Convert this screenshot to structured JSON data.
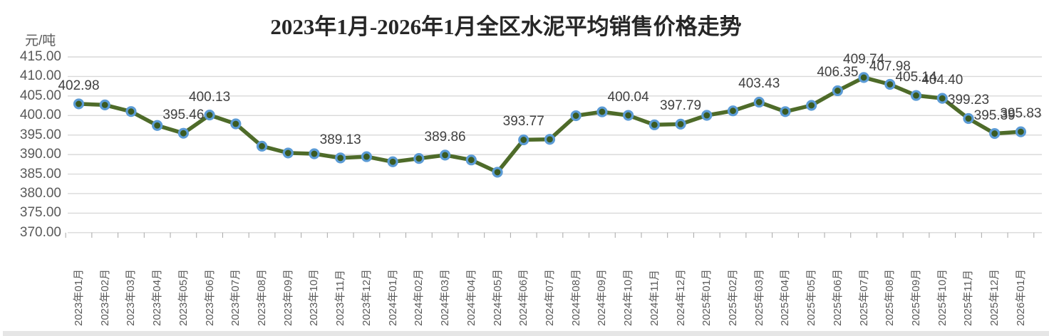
{
  "chart_title": "2023年1月-2026年1月全区水泥平均销售价格走势",
  "y_axis_unit": "元/吨",
  "colors": {
    "line": "#4e6b29",
    "marker_fill": "#3a5a22",
    "marker_stroke": "#5b9bd5",
    "grid": "#d9d9d9",
    "tick": "#a6a6a6",
    "tick_text": "#595959",
    "data_label_text": "#404040",
    "title_text": "#262626"
  },
  "chart_data": {
    "type": "line",
    "title": "2023年1月-2026年1月全区水泥平均销售价格走势",
    "ylabel": "元/吨",
    "xlabel": "",
    "ylim": [
      370,
      415
    ],
    "ytick_step": 5,
    "ytick_format_decimals": 2,
    "grid": true,
    "legend_position": "none",
    "categories": [
      "2023年01月",
      "2023年02月",
      "2023年03月",
      "2023年04月",
      "2023年05月",
      "2023年06月",
      "2023年07月",
      "2023年08月",
      "2023年09月",
      "2023年10月",
      "2023年11月",
      "2023年12月",
      "2024年01月",
      "2024年02月",
      "2024年03月",
      "2024年04月",
      "2024年05月",
      "2024年06月",
      "2024年07月",
      "2024年08月",
      "2024年09月",
      "2024年10月",
      "2024年11月",
      "2024年12月",
      "2025年01月",
      "2025年02月",
      "2025年03月",
      "2025年04月",
      "2025年05月",
      "2025年06月",
      "2025年07月",
      "2025年08月",
      "2025年09月",
      "2025年10月",
      "2025年11月",
      "2025年12月",
      "2026年01月"
    ],
    "series": [
      {
        "name": "全区水泥平均销售价格",
        "values": [
          402.98,
          402.72,
          401.02,
          397.45,
          395.46,
          400.13,
          397.86,
          392.15,
          390.4,
          390.21,
          389.13,
          389.46,
          388.15,
          389.0,
          389.86,
          388.62,
          385.48,
          393.77,
          393.9,
          399.95,
          400.95,
          400.04,
          397.62,
          397.79,
          400.05,
          401.2,
          403.43,
          401.0,
          402.6,
          406.35,
          409.74,
          407.98,
          405.14,
          404.4,
          399.23,
          395.39,
          395.83
        ]
      }
    ],
    "data_labels": [
      {
        "index": 0,
        "text": "402.98"
      },
      {
        "index": 4,
        "text": "395.46"
      },
      {
        "index": 5,
        "text": "400.13"
      },
      {
        "index": 10,
        "text": "389.13"
      },
      {
        "index": 14,
        "text": "389.86"
      },
      {
        "index": 17,
        "text": "393.77"
      },
      {
        "index": 21,
        "text": "400.04"
      },
      {
        "index": 23,
        "text": "397.79"
      },
      {
        "index": 26,
        "text": "403.43"
      },
      {
        "index": 29,
        "text": "406.35"
      },
      {
        "index": 30,
        "text": "409.74"
      },
      {
        "index": 31,
        "text": "407.98"
      },
      {
        "index": 32,
        "text": "405.14"
      },
      {
        "index": 33,
        "text": "404.40"
      },
      {
        "index": 34,
        "text": "399.23"
      },
      {
        "index": 35,
        "text": "395.39"
      },
      {
        "index": 36,
        "text": "395.83"
      }
    ]
  }
}
